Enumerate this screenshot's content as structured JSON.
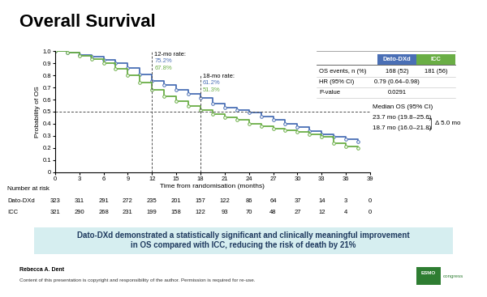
{
  "title": "Overall Survival",
  "chart_data": {
    "type": "line",
    "x_label": "Time from randomisation (months)",
    "y_label": "Probability of OS",
    "xlim": [
      0,
      39
    ],
    "ylim": [
      0,
      1.0
    ],
    "xticks": [
      0,
      3,
      6,
      9,
      12,
      15,
      18,
      21,
      24,
      27,
      30,
      33,
      36,
      39
    ],
    "yticks": [
      0,
      0.1,
      0.2,
      0.3,
      0.4,
      0.5,
      0.6,
      0.7,
      0.8,
      0.9,
      1.0
    ],
    "line_style": "steps",
    "marker": "o",
    "series": [
      {
        "name": "Dato-DXd",
        "color": "#4a6fb5",
        "x": [
          0,
          1.5,
          3,
          4.5,
          6,
          7.5,
          9,
          10.5,
          12,
          13.5,
          15,
          16.5,
          18,
          19.5,
          21,
          22.5,
          24,
          25.5,
          27,
          28.5,
          30,
          31.5,
          33,
          34.5,
          36,
          37.5
        ],
        "values": [
          1.0,
          0.99,
          0.97,
          0.955,
          0.93,
          0.9,
          0.86,
          0.81,
          0.752,
          0.72,
          0.68,
          0.645,
          0.612,
          0.57,
          0.535,
          0.51,
          0.49,
          0.46,
          0.43,
          0.4,
          0.37,
          0.34,
          0.31,
          0.29,
          0.27,
          0.25
        ]
      },
      {
        "name": "ICC",
        "color": "#6aae45",
        "x": [
          0,
          1.5,
          3,
          4.5,
          6,
          7.5,
          9,
          10.5,
          12,
          13.5,
          15,
          16.5,
          18,
          19.5,
          21,
          22.5,
          24,
          25.5,
          27,
          28.5,
          30,
          31.5,
          33,
          34.5,
          36,
          37.5
        ],
        "values": [
          1.0,
          0.985,
          0.96,
          0.935,
          0.9,
          0.855,
          0.8,
          0.74,
          0.678,
          0.63,
          0.59,
          0.55,
          0.513,
          0.48,
          0.45,
          0.43,
          0.4,
          0.38,
          0.36,
          0.345,
          0.33,
          0.31,
          0.29,
          0.24,
          0.21,
          0.2
        ]
      }
    ],
    "reference_lines": {
      "x": [
        12,
        18
      ],
      "y": 0.5
    },
    "annotations": [
      {
        "label": "12-mo rate:",
        "x": 12,
        "rates": [
          "75.2%",
          "67.8%"
        ]
      },
      {
        "label": "18-mo rate:",
        "x": 18,
        "rates": [
          "61.2%",
          "51.3%"
        ]
      }
    ]
  },
  "summary_table": {
    "columns": [
      "Dato-DXd",
      "ICC"
    ],
    "rows": [
      {
        "label": "OS events, n (%)",
        "cells": [
          "168 (52)",
          "181 (56)"
        ]
      },
      {
        "label": "HR (95% CI)",
        "cells": [
          "0.79 (0.64–0.98)"
        ]
      },
      {
        "label": "P-value",
        "cells": [
          "0.0291"
        ]
      }
    ]
  },
  "median_os": {
    "title": "Median OS (95% CI)",
    "values": [
      "23.7 mo (19.8–25.6)",
      "18.7 mo (16.0–21.8)"
    ],
    "difference": "Δ 5.0 mo"
  },
  "number_at_risk": {
    "title": "Number at risk",
    "x": [
      0,
      3,
      6,
      9,
      12,
      15,
      18,
      21,
      24,
      27,
      30,
      33,
      36,
      39
    ],
    "rows": [
      {
        "name": "Dato-DXd",
        "values": [
          323,
          311,
          291,
          272,
          235,
          201,
          157,
          122,
          86,
          64,
          37,
          14,
          3,
          0
        ]
      },
      {
        "name": "ICC",
        "values": [
          321,
          290,
          268,
          231,
          199,
          158,
          122,
          93,
          70,
          48,
          27,
          12,
          4,
          0
        ]
      }
    ]
  },
  "banner": [
    "Dato-DXd demonstrated a statistically significant and clinically meaningful improvement",
    "in OS compared with ICC, reducing the risk of death by 21%"
  ],
  "footer": {
    "author": "Rebecca A. Dent",
    "note": "Content of this presentation is copyright and responsibility of the author. Permission is required for re-use.",
    "logo": [
      "ESMO",
      "congress"
    ]
  }
}
